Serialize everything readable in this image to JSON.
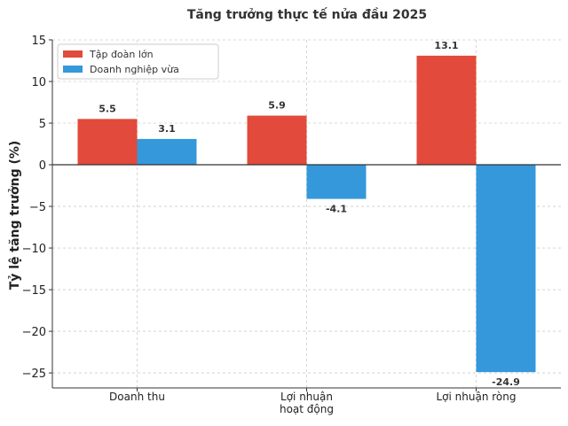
{
  "chart_data": {
    "type": "bar",
    "title": "Tăng trưởng thực tế nửa đầu 2025",
    "xlabel": "",
    "ylabel": "Tỷ lệ tăng trưởng (%)",
    "categories": [
      [
        "Doanh thu"
      ],
      [
        "Lợi nhuận",
        "hoạt động"
      ],
      [
        "Lợi nhuận ròng"
      ]
    ],
    "series": [
      {
        "name": "Tập đoàn lớn",
        "color": "#e24a3b",
        "values": [
          5.5,
          5.9,
          13.1
        ],
        "labels": [
          "5.5",
          "5.9",
          "13.1"
        ]
      },
      {
        "name": "Doanh nghiệp vừa",
        "color": "#3498db",
        "values": [
          3.1,
          -4.1,
          -24.9
        ],
        "labels": [
          "3.1",
          "-4.1",
          "-24.9"
        ]
      }
    ],
    "ylim": [
      -26.8,
      15
    ],
    "yticks": [
      15,
      10,
      5,
      0,
      -5,
      -10,
      -15,
      -20,
      -25
    ],
    "ytick_labels": [
      "15",
      "10",
      "5",
      "0",
      "−5",
      "−10",
      "−15",
      "−20",
      "−25"
    ],
    "grid": true,
    "legend_position": "top-left"
  }
}
